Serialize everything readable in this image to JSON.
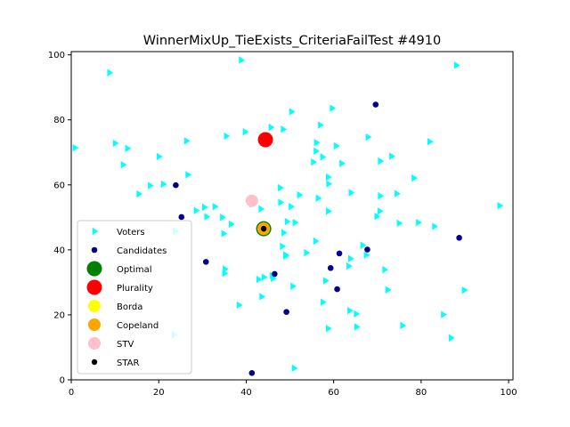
{
  "chart_data": {
    "type": "scatter",
    "title": "WinnerMixUp_TieExists_CriteriaFailTest #4910",
    "xlabel": "",
    "ylabel": "",
    "xlim": [
      0,
      101
    ],
    "ylim": [
      0,
      101
    ],
    "xticks": [
      0,
      20,
      40,
      60,
      80,
      100
    ],
    "yticks": [
      0,
      20,
      40,
      60,
      80,
      100
    ],
    "grid": false,
    "legend_position": "lower-left",
    "series": [
      {
        "name": "Voters",
        "marker": "triangle-right",
        "color": "#00ffff",
        "points": [
          [
            8.7,
            94.5
          ],
          [
            38.8,
            98.4
          ],
          [
            88,
            96.8
          ],
          [
            0.8,
            71.4
          ],
          [
            10,
            72.8
          ],
          [
            12.8,
            71.2
          ],
          [
            11.8,
            66.2
          ],
          [
            20,
            68.7
          ],
          [
            26.3,
            73.5
          ],
          [
            26.6,
            63.1
          ],
          [
            18,
            59.8
          ],
          [
            15.4,
            57.2
          ],
          [
            21,
            60.2
          ],
          [
            28.5,
            52.1
          ],
          [
            30.4,
            53.1
          ],
          [
            32.8,
            53.3
          ],
          [
            30.9,
            50.2
          ],
          [
            34.5,
            50
          ],
          [
            36.5,
            47.9
          ],
          [
            34.8,
            45
          ],
          [
            35.4,
            75
          ],
          [
            39.7,
            76.3
          ],
          [
            45.6,
            77.7
          ],
          [
            48.4,
            77.1
          ],
          [
            50.3,
            82.5
          ],
          [
            56.9,
            78.4
          ],
          [
            59.6,
            83.6
          ],
          [
            60.5,
            72
          ],
          [
            56,
            73
          ],
          [
            55.9,
            70.4
          ],
          [
            55.3,
            67
          ],
          [
            57.4,
            68.6
          ],
          [
            61.8,
            66.6
          ],
          [
            67.8,
            74.7
          ],
          [
            70.6,
            67.3
          ],
          [
            73.2,
            68.8
          ],
          [
            78.3,
            62.1
          ],
          [
            81.9,
            73.3
          ],
          [
            58.7,
            62.4
          ],
          [
            58.8,
            60.3
          ],
          [
            63.9,
            57.6
          ],
          [
            70.6,
            56.6
          ],
          [
            74.4,
            57.3
          ],
          [
            56.4,
            55.9
          ],
          [
            58.7,
            51.9
          ],
          [
            70.5,
            51.9
          ],
          [
            69.8,
            50.3
          ],
          [
            74.9,
            48.2
          ],
          [
            79.3,
            48.4
          ],
          [
            83,
            47.2
          ],
          [
            97.9,
            53.6
          ],
          [
            41.3,
            54.1
          ],
          [
            43.3,
            52.6
          ],
          [
            47.7,
            59.1
          ],
          [
            52.1,
            56.9
          ],
          [
            47.8,
            54.6
          ],
          [
            50.2,
            53.3
          ],
          [
            49.3,
            48.7
          ],
          [
            51.1,
            48.4
          ],
          [
            48.5,
            45.3
          ],
          [
            55.8,
            42.7
          ],
          [
            53.7,
            39.1
          ],
          [
            48.2,
            41.1
          ],
          [
            48.9,
            38.5
          ],
          [
            49,
            38.1
          ],
          [
            63.8,
            37.3
          ],
          [
            66.6,
            41.4
          ],
          [
            67.4,
            38.4
          ],
          [
            71.6,
            33.9
          ],
          [
            63.4,
            35
          ],
          [
            58.1,
            30.5
          ],
          [
            72.3,
            27.7
          ],
          [
            89.8,
            27.6
          ],
          [
            50.6,
            28.8
          ],
          [
            45.9,
            32.1
          ],
          [
            46.1,
            31.2
          ],
          [
            42.8,
            30.9
          ],
          [
            44,
            31.6
          ],
          [
            43.5,
            25.6
          ],
          [
            38.3,
            23
          ],
          [
            57.5,
            23.9
          ],
          [
            63.6,
            21.3
          ],
          [
            65.1,
            20.3
          ],
          [
            85,
            20.1
          ],
          [
            58.7,
            15.8
          ],
          [
            65.2,
            16.3
          ],
          [
            75.7,
            16.7
          ],
          [
            86.8,
            12.9
          ],
          [
            50.9,
            3.6
          ],
          [
            23.5,
            13.9
          ],
          [
            35.1,
            34.1
          ],
          [
            35,
            32.8
          ],
          [
            45.1,
            73.4
          ],
          [
            23.7,
            45.7
          ]
        ]
      },
      {
        "name": "Candidates",
        "marker": "circle",
        "color": "#00008b",
        "points": [
          [
            69.6,
            84.7
          ],
          [
            23.9,
            59.9
          ],
          [
            25.2,
            50.1
          ],
          [
            88.7,
            43.7
          ],
          [
            61.3,
            38.9
          ],
          [
            67.7,
            40.1
          ],
          [
            59.3,
            34.4
          ],
          [
            30.8,
            36.3
          ],
          [
            46.5,
            32.6
          ],
          [
            60.8,
            27.9
          ],
          [
            49.2,
            20.9
          ],
          [
            41.3,
            2.1
          ],
          [
            44,
            46.5
          ]
        ]
      },
      {
        "name": "Optimal",
        "marker": "circle",
        "color": "#008000",
        "size": "large",
        "points": [
          [
            44,
            46.5
          ]
        ]
      },
      {
        "name": "Plurality",
        "marker": "circle",
        "color": "#ff0000",
        "size": "large",
        "points": [
          [
            44.4,
            73.9
          ]
        ]
      },
      {
        "name": "Borda",
        "marker": "circle",
        "color": "#ffff00",
        "size": "medium",
        "points": [
          [
            44,
            46.5
          ]
        ]
      },
      {
        "name": "Copeland",
        "marker": "circle",
        "color": "#ffa500",
        "size": "medium",
        "points": [
          [
            44,
            46.5
          ]
        ]
      },
      {
        "name": "STV",
        "marker": "circle",
        "color": "#ffc0cb",
        "size": "medium",
        "points": [
          [
            41.3,
            55.1
          ]
        ]
      },
      {
        "name": "STAR",
        "marker": "circle",
        "color": "#000000",
        "size": "small",
        "points": [
          [
            44,
            46.5
          ]
        ]
      }
    ]
  }
}
